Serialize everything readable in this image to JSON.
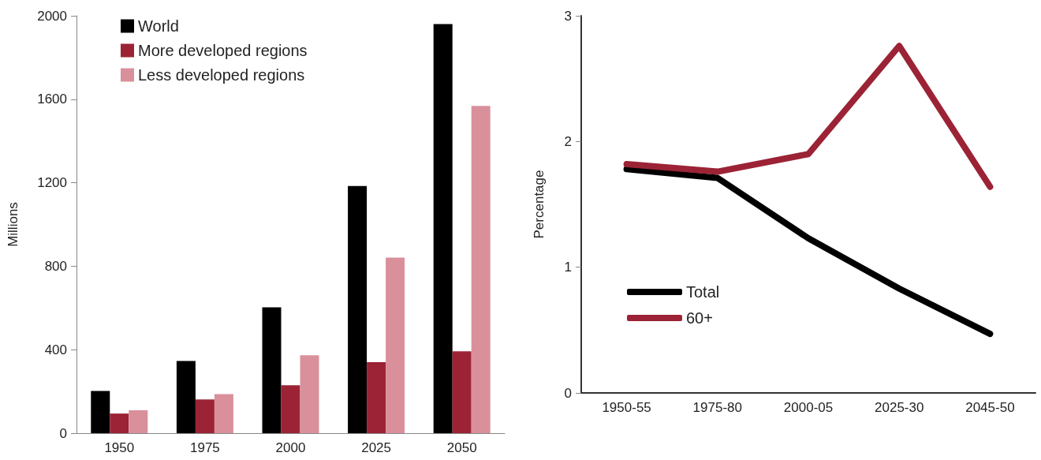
{
  "chart_data": [
    {
      "type": "bar",
      "ylabel": "Millions",
      "categories": [
        "1950",
        "1975",
        "2000",
        "2025",
        "2050"
      ],
      "series": [
        {
          "name": "World",
          "color": "#000000",
          "values": [
            202,
            346,
            603,
            1184,
            1960
          ]
        },
        {
          "name": "More developed regions",
          "color": "#9b2335",
          "values": [
            94,
            162,
            230,
            340,
            392
          ]
        },
        {
          "name": "Less developed regions",
          "color": "#d9909b",
          "values": [
            110,
            187,
            373,
            841,
            1568
          ]
        }
      ],
      "ylim": [
        0,
        2000
      ],
      "yticks": [
        0,
        400,
        800,
        1200,
        1600,
        2000
      ],
      "grid": false,
      "legend": "top left"
    },
    {
      "type": "line",
      "ylabel": "Percentage",
      "categories": [
        "1950-55",
        "1975-80",
        "2000-05",
        "2025-30",
        "2045-50"
      ],
      "series": [
        {
          "name": "Total",
          "color": "#000000",
          "values": [
            1.78,
            1.71,
            1.23,
            0.83,
            0.47
          ]
        },
        {
          "name": "60+",
          "color": "#9b2335",
          "values": [
            1.82,
            1.76,
            1.9,
            2.76,
            1.64
          ]
        }
      ],
      "ylim": [
        0,
        3
      ],
      "yticks": [
        0,
        1,
        2,
        3
      ],
      "grid": false,
      "legend": "bottom left",
      "marker": "none",
      "line_style": "solid"
    }
  ]
}
